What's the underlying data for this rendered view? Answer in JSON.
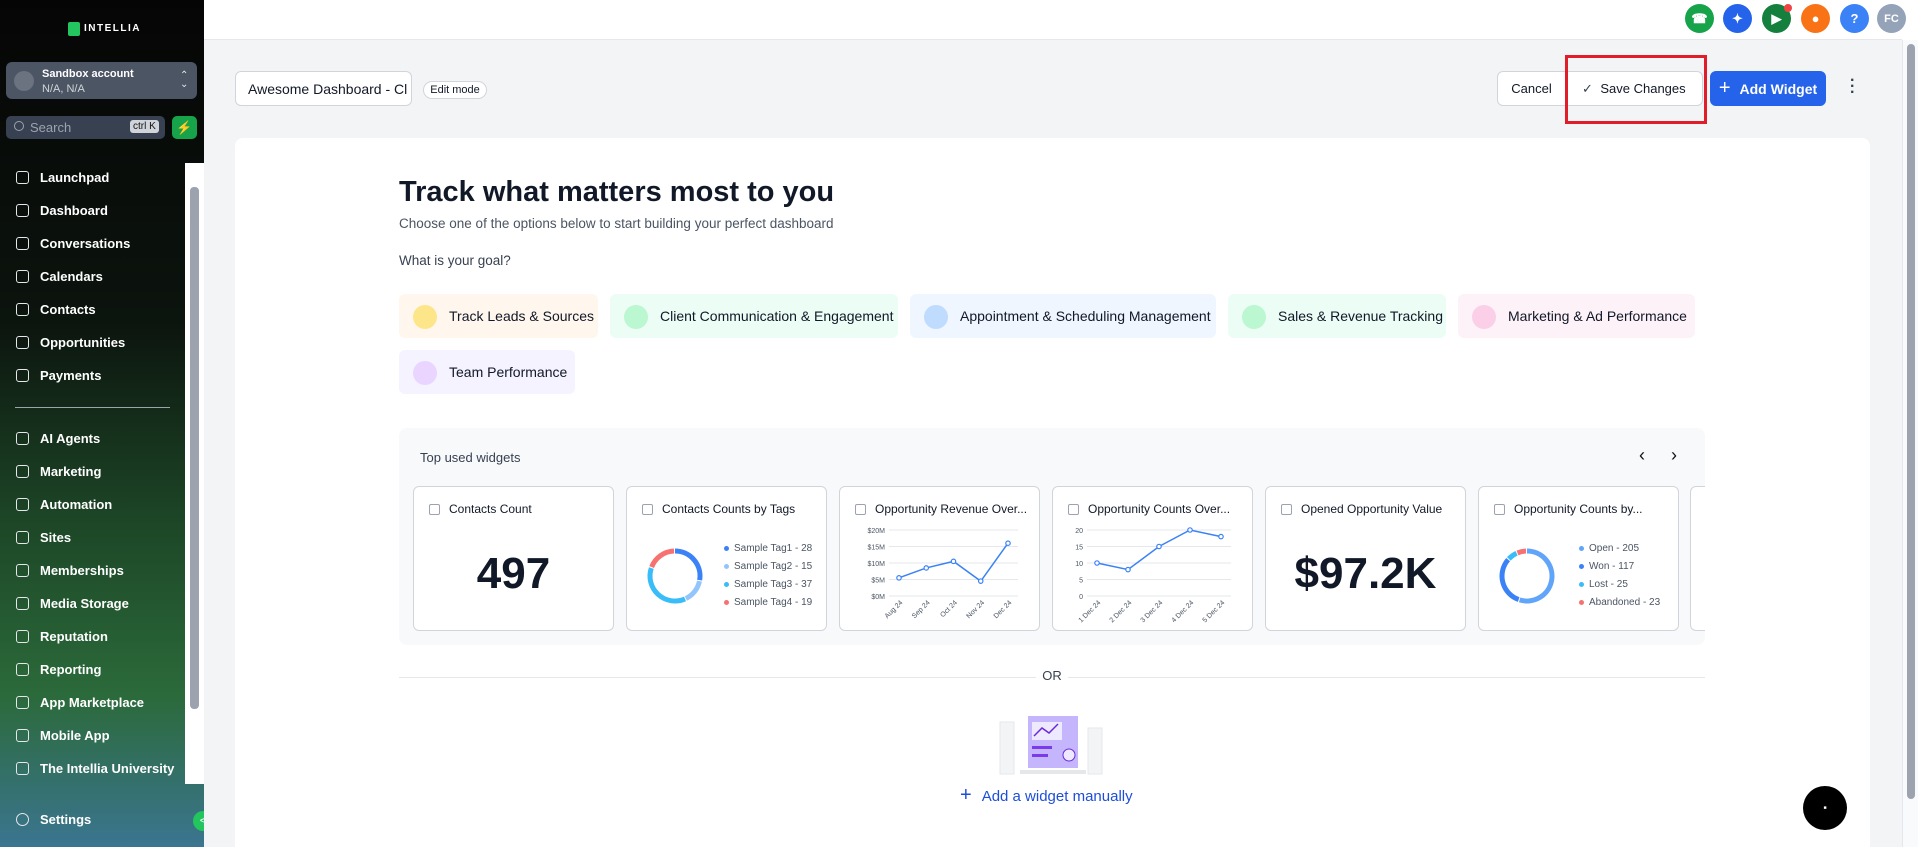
{
  "sidebar": {
    "brand": "INTELLIA",
    "account": {
      "name": "Sandbox account",
      "location": "N/A, N/A"
    },
    "search": {
      "placeholder": "Search",
      "shortcut": "ctrl K"
    },
    "nav": [
      "Launchpad",
      "Dashboard",
      "Conversations",
      "Calendars",
      "Contacts",
      "Opportunities",
      "Payments"
    ],
    "nav2": [
      "AI Agents",
      "Marketing",
      "Automation",
      "Sites",
      "Memberships",
      "Media Storage",
      "Reputation",
      "Reporting",
      "App Marketplace",
      "Mobile App",
      "The Intellia University"
    ],
    "settings": "Settings"
  },
  "topbar": {
    "help": "?",
    "avatar": "FC"
  },
  "toolbar": {
    "dashboard_name": "Awesome Dashboard - Cl",
    "mode": "Edit mode",
    "cancel": "Cancel",
    "save": "Save Changes",
    "add": "Add Widget"
  },
  "main": {
    "title": "Track what matters most to you",
    "subtitle": "Choose one of the options below to start building your perfect dashboard",
    "goal_question": "What is your goal?",
    "goals": [
      "Track Leads & Sources",
      "Client Communication & Engagement",
      "Appointment & Scheduling Management",
      "Sales & Revenue Tracking",
      "Marketing & Ad Performance",
      "Team Performance"
    ]
  },
  "widgets": {
    "title": "Top used widgets",
    "items": [
      {
        "title": "Contacts Count",
        "type": "number",
        "value": 497
      },
      {
        "title": "Contacts Counts by Tags",
        "type": "donut",
        "legend": [
          {
            "label": "Sample Tag1 - 28",
            "value": 28,
            "color": "#3b82f6"
          },
          {
            "label": "Sample Tag2 - 15",
            "value": 15,
            "color": "#93c5fd"
          },
          {
            "label": "Sample Tag3 - 37",
            "value": 37,
            "color": "#38bdf8"
          },
          {
            "label": "Sample Tag4 - 19",
            "value": 19,
            "color": "#f87171"
          }
        ]
      },
      {
        "title": "Opportunity Revenue Over...",
        "type": "line",
        "color": "#3b82f6",
        "categories": [
          "Aug 24",
          "Sep 24",
          "Oct 24",
          "Nov 24",
          "Dec 24"
        ],
        "values": [
          5500000,
          8500000,
          10500000,
          4500000,
          16000000
        ],
        "ylim": [
          0,
          20000000
        ],
        "yticks": [
          {
            "value": 0,
            "label": "$0M"
          },
          {
            "value": 5000000,
            "label": "$5M"
          },
          {
            "value": 10000000,
            "label": "$10M"
          },
          {
            "value": 15000000,
            "label": "$15M"
          },
          {
            "value": 20000000,
            "label": "$20M"
          }
        ]
      },
      {
        "title": "Opportunity Counts Over...",
        "type": "line",
        "color": "#3b82f6",
        "categories": [
          "1 Dec 24",
          "2 Dec 24",
          "3 Dec 24",
          "4 Dec 24",
          "5 Dec 24"
        ],
        "values": [
          10,
          8,
          15,
          20,
          18
        ],
        "ylim": [
          0,
          20
        ],
        "yticks": [
          0,
          5,
          10,
          15,
          20
        ]
      },
      {
        "title": "Opened Opportunity Value",
        "type": "number",
        "value": "$97.2K"
      },
      {
        "title": "Opportunity Counts by...",
        "type": "donut",
        "legend": [
          {
            "label": "Open - 205",
            "value": 205,
            "color": "#60a5fa"
          },
          {
            "label": "Won - 117",
            "value": 117,
            "color": "#3b82f6"
          },
          {
            "label": "Lost - 25",
            "value": 25,
            "color": "#38bdf8"
          },
          {
            "label": "Abandoned - 23",
            "value": 23,
            "color": "#f87171"
          }
        ]
      }
    ]
  },
  "or": "OR",
  "add_manual": "Add a widget manually"
}
